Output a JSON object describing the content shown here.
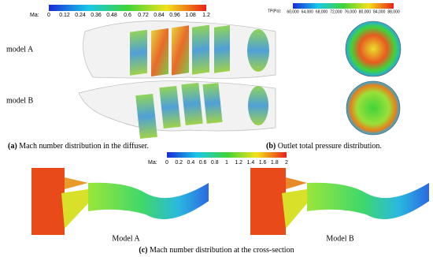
{
  "figure": {
    "panel_a": {
      "colorbar": {
        "label": "Ma:",
        "ticks": [
          "0",
          "0.12",
          "0.24",
          "0.36",
          "0.48",
          "0.6",
          "0.72",
          "0.84",
          "0.96",
          "1.08",
          "1.2"
        ]
      },
      "models": [
        "model A",
        "model B"
      ],
      "caption": {
        "label": "(a)",
        "text": "Mach number distribution in the diffuser."
      }
    },
    "panel_b": {
      "colorbar": {
        "label": "TP(Pa):",
        "ticks": [
          "60,000",
          "64,000",
          "68,000",
          "72,000",
          "76,000",
          "80,000",
          "84,000",
          "88,000"
        ]
      },
      "caption": {
        "label": "(b)",
        "text": "Outlet total pressure distribution."
      }
    },
    "panel_c": {
      "colorbar": {
        "label": "Ma:",
        "ticks": [
          "0",
          "0.2",
          "0.4",
          "0.6",
          "0.8",
          "1",
          "1.2",
          "1.4",
          "1.6",
          "1.8",
          "2"
        ]
      },
      "models": [
        "Model A",
        "Model B"
      ],
      "caption": {
        "label": "(c)",
        "text": "Mach number distribution at the cross-section"
      }
    }
  }
}
